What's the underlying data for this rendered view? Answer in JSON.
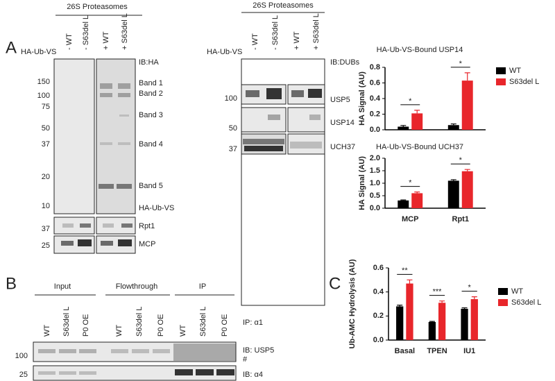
{
  "figure": {
    "panel_labels": [
      "A",
      "B",
      "C"
    ],
    "panel_a": {
      "header_left": "26S Proteasomes",
      "header_middle": "26S Proteasomes",
      "probe_left": "HA-Ub-VS",
      "probe_middle": "HA-Ub-VS",
      "lanes_left": [
        "- WT",
        "- S63del L",
        "+ WT",
        "+ S63del L"
      ],
      "lanes_middle": [
        "- WT",
        "- S63del L",
        "+ WT",
        "+ S63del L"
      ],
      "ib_left": "IB:HA",
      "ib_middle": "IB:DUBs",
      "bands": [
        "Band 1",
        "Band 2",
        "Band 3",
        "Band 4",
        "Band 5",
        "HA-Ub-VS"
      ],
      "markers_left": [
        150,
        100,
        75,
        50,
        37,
        20,
        10,
        37,
        25
      ],
      "loading": [
        "Rpt1",
        "MCP"
      ],
      "markers_middle": [
        100,
        50,
        37
      ],
      "dubs": [
        "USP5",
        "USP14",
        "UCH37"
      ]
    },
    "panel_b": {
      "groups": [
        "Input",
        "Flowthrough",
        "IP"
      ],
      "lanes": [
        "WT",
        "S63del L",
        "P0 OE",
        "WT",
        "S63del L",
        "P0 OE",
        "WT",
        "S63del L",
        "P0 OE"
      ],
      "ip": "IP: α1",
      "ib": [
        "IB: USP5",
        "IB: α4"
      ],
      "note": "#",
      "markers": [
        100,
        25
      ]
    }
  },
  "chart_data": [
    {
      "type": "bar",
      "title": "HA-Ub-VS-Bound USP14",
      "y_label": "HA Signal (AU)",
      "categories": [
        null,
        null
      ],
      "series": [
        {
          "name": "WT",
          "color": "#000000",
          "values": [
            0.04,
            0.06
          ],
          "errors": [
            0.015,
            0.015
          ]
        },
        {
          "name": "S63del L",
          "color": "#e8262b",
          "values": [
            0.21,
            0.63
          ],
          "errors": [
            0.04,
            0.1
          ]
        }
      ],
      "significance": [
        "*",
        "*"
      ],
      "ylim": [
        0,
        0.8
      ],
      "yticks": [
        {
          "value": 0,
          "label": "0.0"
        },
        0.2,
        0.4,
        0.6,
        0.8
      ],
      "legend": true
    },
    {
      "type": "bar",
      "title": "HA-Ub-VS-Bound UCH37",
      "y_label": "HA Signal (AU)",
      "categories": [
        "MCP",
        "Rpt1"
      ],
      "series": [
        {
          "name": "WT",
          "color": "#000000",
          "values": [
            0.31,
            1.1
          ],
          "errors": [
            0.02,
            0.04
          ]
        },
        {
          "name": "S63del L",
          "color": "#e8262b",
          "values": [
            0.6,
            1.48
          ],
          "errors": [
            0.05,
            0.07
          ]
        }
      ],
      "significance": [
        "*",
        "*"
      ],
      "ylim": [
        0,
        2
      ],
      "yticks": [
        {
          "value": 0,
          "label": "0.0"
        },
        0.5,
        {
          "value": 1,
          "label": "1.0"
        },
        1.5,
        {
          "value": 2,
          "label": "2.0"
        }
      ],
      "legend": false
    },
    {
      "type": "bar",
      "y_label": "Ub-AMC Hydrolysis (AU)",
      "categories": [
        "Basal",
        "TPEN",
        "IU1"
      ],
      "series": [
        {
          "name": "WT",
          "color": "#000000",
          "values": [
            0.28,
            0.15,
            0.26
          ],
          "errors": [
            0.01,
            0.005,
            0.008
          ]
        },
        {
          "name": "S63del L",
          "color": "#e8262b",
          "values": [
            0.47,
            0.31,
            0.34
          ],
          "errors": [
            0.03,
            0.015,
            0.02
          ]
        }
      ],
      "significance": [
        "**",
        "***",
        "*"
      ],
      "ylim": [
        0,
        0.6
      ],
      "yticks": [
        {
          "value": 0,
          "label": "0.0"
        },
        0.2,
        0.4,
        0.6
      ],
      "legend": true
    }
  ]
}
